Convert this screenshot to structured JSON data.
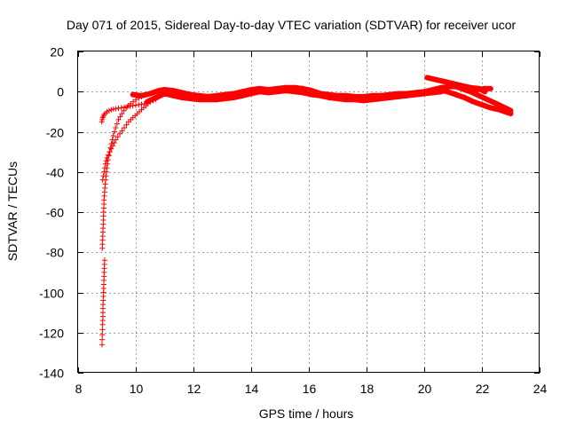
{
  "chart_data": {
    "type": "scatter",
    "title": "Day 071 of 2015, Sidereal Day-to-day VTEC variation (SDTVAR) for receiver ucor",
    "xlabel": "GPS time / hours",
    "ylabel": "SDTVAR / TECUs",
    "xlim": [
      8,
      24
    ],
    "ylim": [
      -140,
      20
    ],
    "xticks": [
      8,
      10,
      12,
      14,
      16,
      18,
      20,
      22,
      24
    ],
    "yticks": [
      -140,
      -120,
      -100,
      -80,
      -60,
      -40,
      -20,
      0,
      20
    ],
    "grid": true,
    "marker": "+",
    "color": "#ff0000",
    "series": [
      {
        "name": "arc-steep",
        "points": [
          [
            8.83,
            -126
          ],
          [
            8.84,
            -121
          ],
          [
            8.85,
            -116
          ],
          [
            8.86,
            -112
          ],
          [
            8.86,
            -108
          ],
          [
            8.87,
            -104
          ],
          [
            8.88,
            -100
          ],
          [
            8.89,
            -96
          ],
          [
            8.9,
            -92
          ],
          [
            8.91,
            -88
          ],
          [
            8.92,
            -84
          ],
          [
            8.84,
            -78
          ],
          [
            8.85,
            -74
          ],
          [
            8.86,
            -70
          ],
          [
            8.87,
            -66
          ],
          [
            8.88,
            -62
          ],
          [
            8.89,
            -58
          ],
          [
            8.9,
            -54
          ],
          [
            8.92,
            -50
          ],
          [
            8.94,
            -46
          ],
          [
            8.97,
            -42
          ],
          [
            9.0,
            -38
          ],
          [
            9.04,
            -34
          ],
          [
            9.09,
            -30
          ],
          [
            9.15,
            -26
          ],
          [
            9.22,
            -22
          ],
          [
            9.3,
            -18
          ],
          [
            9.4,
            -14
          ],
          [
            9.52,
            -11
          ],
          [
            9.66,
            -8
          ],
          [
            9.82,
            -6
          ],
          [
            10.0,
            -4
          ],
          [
            10.2,
            -2.5
          ],
          [
            10.4,
            -1.5
          ],
          [
            10.6,
            -0.5
          ]
        ]
      },
      {
        "name": "arc-upper",
        "points": [
          [
            8.82,
            -15
          ],
          [
            8.85,
            -13
          ],
          [
            8.9,
            -11.5
          ],
          [
            9.0,
            -10
          ],
          [
            9.15,
            -9
          ],
          [
            9.3,
            -8.5
          ],
          [
            9.5,
            -8
          ],
          [
            9.7,
            -7.5
          ],
          [
            9.9,
            -7
          ],
          [
            10.1,
            -6.5
          ],
          [
            10.3,
            -6
          ],
          [
            10.5,
            -5
          ],
          [
            10.7,
            -4
          ]
        ]
      },
      {
        "name": "arc-lower",
        "points": [
          [
            8.85,
            -44
          ],
          [
            8.9,
            -40
          ],
          [
            8.95,
            -36
          ],
          [
            9.0,
            -33
          ],
          [
            9.1,
            -30
          ],
          [
            9.2,
            -27
          ],
          [
            9.3,
            -24
          ],
          [
            9.45,
            -21
          ],
          [
            9.6,
            -18
          ],
          [
            9.75,
            -15
          ],
          [
            9.9,
            -13
          ],
          [
            10.05,
            -11
          ],
          [
            10.2,
            -9
          ],
          [
            10.35,
            -7
          ],
          [
            10.5,
            -5
          ],
          [
            10.65,
            -3
          ]
        ]
      },
      {
        "name": "band-main",
        "points": [
          [
            9.9,
            -1.5
          ],
          [
            10.2,
            -2
          ],
          [
            10.5,
            -1
          ],
          [
            10.8,
            0.5
          ],
          [
            11.0,
            1
          ],
          [
            11.3,
            0.5
          ],
          [
            11.6,
            -0.5
          ],
          [
            11.9,
            -1.5
          ],
          [
            12.2,
            -2
          ],
          [
            12.5,
            -2.5
          ],
          [
            12.8,
            -2
          ],
          [
            13.1,
            -1.5
          ],
          [
            13.4,
            -1
          ],
          [
            13.7,
            0
          ],
          [
            14.0,
            1
          ],
          [
            14.3,
            1.5
          ],
          [
            14.6,
            1
          ],
          [
            14.9,
            1.5
          ],
          [
            15.2,
            2
          ],
          [
            15.5,
            2
          ],
          [
            15.8,
            1.5
          ],
          [
            16.1,
            0.5
          ],
          [
            16.4,
            -1
          ],
          [
            16.7,
            -1.5
          ],
          [
            17.0,
            -2
          ],
          [
            17.3,
            -2
          ],
          [
            17.6,
            -2.5
          ],
          [
            17.9,
            -2.5
          ],
          [
            18.2,
            -2
          ],
          [
            18.5,
            -2
          ],
          [
            18.8,
            -1.5
          ],
          [
            19.1,
            -1
          ],
          [
            19.4,
            -1
          ],
          [
            19.7,
            -0.5
          ],
          [
            20.0,
            0
          ],
          [
            20.3,
            1
          ],
          [
            20.6,
            2
          ],
          [
            20.9,
            2.5
          ],
          [
            21.2,
            2.5
          ],
          [
            21.5,
            1.5
          ],
          [
            21.8,
            1
          ],
          [
            22.1,
            1.5
          ],
          [
            22.3,
            1.5
          ]
        ]
      },
      {
        "name": "band-low",
        "points": [
          [
            10.4,
            -5
          ],
          [
            10.7,
            -3
          ],
          [
            11.0,
            -1
          ],
          [
            11.3,
            -2
          ],
          [
            11.6,
            -3
          ],
          [
            11.9,
            -3.5
          ],
          [
            12.2,
            -4
          ],
          [
            12.5,
            -4
          ],
          [
            12.8,
            -4
          ],
          [
            13.1,
            -3.5
          ],
          [
            13.4,
            -3
          ],
          [
            13.7,
            -2
          ],
          [
            14.0,
            -1
          ],
          [
            14.3,
            0
          ],
          [
            14.6,
            -0.5
          ],
          [
            14.9,
            0
          ],
          [
            15.2,
            0.5
          ],
          [
            15.5,
            0
          ],
          [
            15.8,
            -0.5
          ],
          [
            16.1,
            -1.5
          ],
          [
            16.4,
            -2
          ],
          [
            16.7,
            -3
          ],
          [
            17.0,
            -3.5
          ],
          [
            17.3,
            -4
          ],
          [
            17.6,
            -4
          ],
          [
            17.9,
            -4.5
          ],
          [
            18.2,
            -4
          ],
          [
            18.5,
            -3.5
          ],
          [
            18.8,
            -3
          ],
          [
            19.1,
            -2.5
          ],
          [
            19.4,
            -2
          ],
          [
            19.7,
            -1.5
          ],
          [
            20.0,
            -1
          ],
          [
            20.3,
            -0.5
          ],
          [
            20.6,
            0
          ]
        ]
      },
      {
        "name": "arc-late-high",
        "points": [
          [
            20.1,
            7
          ],
          [
            20.4,
            6
          ],
          [
            20.7,
            5
          ],
          [
            21.0,
            4
          ],
          [
            21.3,
            3
          ],
          [
            21.6,
            2
          ],
          [
            21.9,
            1.5
          ],
          [
            22.1,
            0
          ]
        ]
      },
      {
        "name": "arc-late-low",
        "points": [
          [
            20.5,
            1
          ],
          [
            20.8,
            0
          ],
          [
            21.1,
            -1.5
          ],
          [
            21.4,
            -3
          ],
          [
            21.7,
            -5
          ],
          [
            22.0,
            -6.5
          ],
          [
            22.3,
            -8
          ],
          [
            22.6,
            -9
          ],
          [
            22.9,
            -10.5
          ],
          [
            23.0,
            -11
          ]
        ]
      },
      {
        "name": "arc-late-mid",
        "points": [
          [
            21.0,
            3
          ],
          [
            21.3,
            1.5
          ],
          [
            21.6,
            0
          ],
          [
            21.9,
            -2
          ],
          [
            22.2,
            -4
          ],
          [
            22.5,
            -6
          ],
          [
            22.8,
            -8
          ],
          [
            23.0,
            -9.5
          ]
        ]
      }
    ]
  }
}
